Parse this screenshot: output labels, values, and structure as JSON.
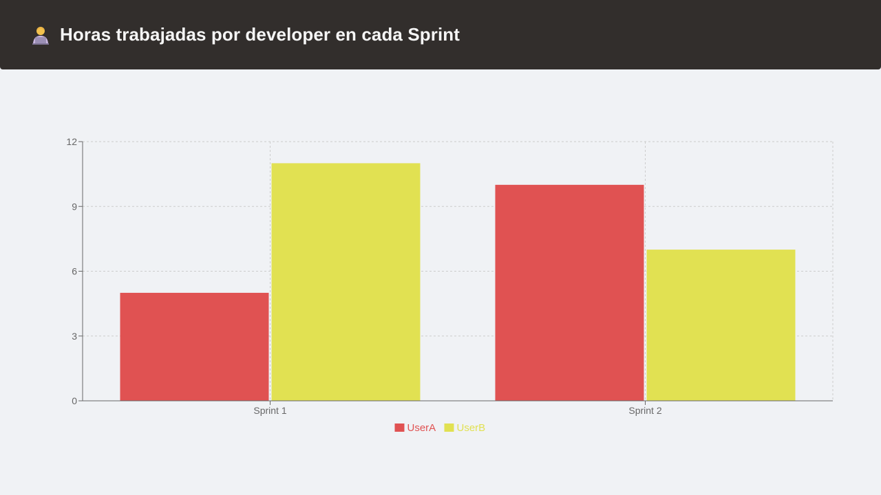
{
  "header": {
    "title": "Horas trabajadas por developer en cada Sprint",
    "icon": "technologist-icon"
  },
  "chart_data": {
    "type": "bar",
    "categories": [
      "Sprint 1",
      "Sprint 2"
    ],
    "series": [
      {
        "name": "UserA",
        "values": [
          5,
          10
        ],
        "color": "#e05252"
      },
      {
        "name": "UserB",
        "values": [
          11,
          7
        ],
        "color": "#e1e152"
      }
    ],
    "ylim": [
      0,
      12
    ],
    "yticks": [
      0,
      3,
      6,
      9,
      12
    ],
    "grid": true,
    "legend": "bottom-center"
  }
}
